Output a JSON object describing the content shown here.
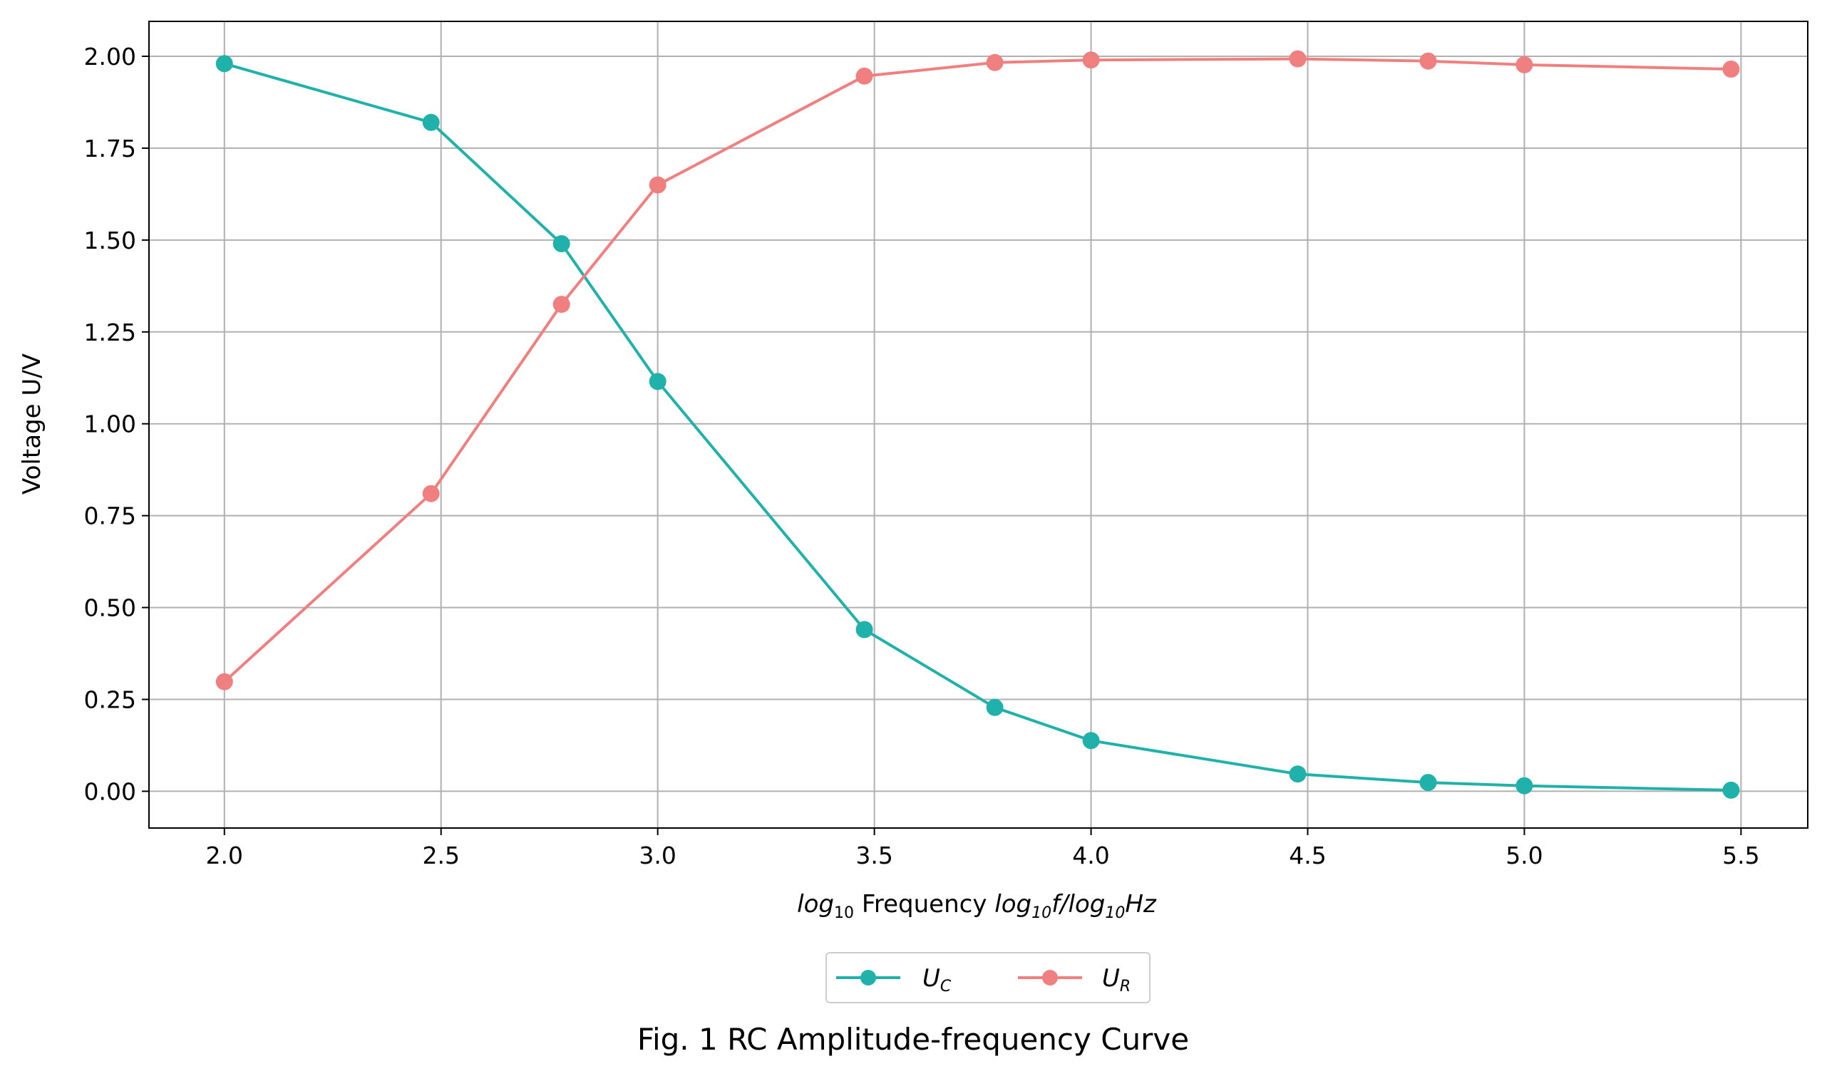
{
  "chart_data": {
    "type": "line",
    "caption": "Fig. 1 RC Amplitude-frequency Curve",
    "title": "",
    "xlabel": {
      "part1_main": "log",
      "part1_sub": "10",
      "part2": " Frequency ",
      "part3_main": "log",
      "part3_sub": "10",
      "part3_end": "f/log",
      "part4_sub": "10",
      "part4_end": "Hz"
    },
    "ylabel": "Voltage U/V",
    "xlim": [
      1.826,
      5.654
    ],
    "ylim": [
      -0.1,
      2.095
    ],
    "x_ticks": [
      2.0,
      2.5,
      3.0,
      3.5,
      4.0,
      4.5,
      5.0,
      5.5
    ],
    "x_tick_labels": [
      "2.0",
      "2.5",
      "3.0",
      "3.5",
      "4.0",
      "4.5",
      "5.0",
      "5.5"
    ],
    "y_ticks": [
      0.0,
      0.25,
      0.5,
      0.75,
      1.0,
      1.25,
      1.5,
      1.75,
      2.0
    ],
    "y_tick_labels": [
      "0.00",
      "0.25",
      "0.50",
      "0.75",
      "1.00",
      "1.25",
      "1.50",
      "1.75",
      "2.00"
    ],
    "grid": true,
    "legend": {
      "placement": "bottom-center",
      "columns": 2
    },
    "x": [
      2.0,
      2.477,
      2.778,
      3.0,
      3.477,
      3.778,
      4.0,
      4.477,
      4.778,
      5.0,
      5.477
    ],
    "series": [
      {
        "name_main": "U",
        "name_sub": "C",
        "color": "#20b2aa",
        "values": [
          1.98,
          1.82,
          1.49,
          1.115,
          0.44,
          0.228,
          0.138,
          0.047,
          0.024,
          0.015,
          0.003
        ]
      },
      {
        "name_main": "U",
        "name_sub": "R",
        "color": "#f08080",
        "values": [
          0.298,
          0.81,
          1.325,
          1.65,
          1.946,
          1.983,
          1.99,
          1.993,
          1.987,
          1.977,
          1.965
        ]
      }
    ]
  }
}
